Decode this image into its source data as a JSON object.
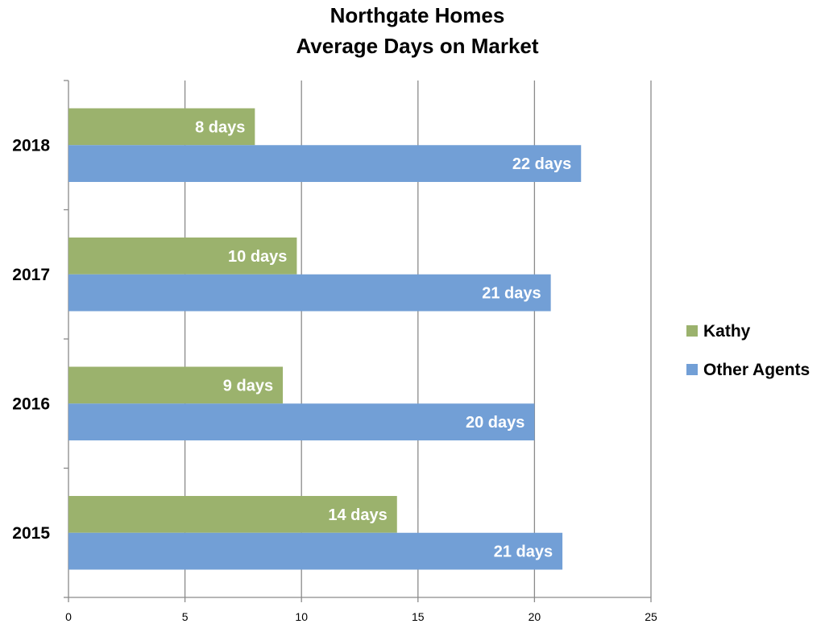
{
  "chart_data": {
    "type": "bar",
    "orientation": "horizontal",
    "title": "Northgate Homes",
    "subtitle": "Average Days on Market",
    "xlabel": "",
    "ylabel": "",
    "categories": [
      "2015",
      "2016",
      "2017",
      "2018"
    ],
    "xlim": [
      0,
      25
    ],
    "x_ticks": [
      0,
      5,
      10,
      15,
      20,
      25
    ],
    "grid": true,
    "legend_position": "right",
    "series": [
      {
        "name": "Kathy",
        "color": "#9bb26d",
        "values": [
          14.1,
          9.2,
          9.8,
          8.0
        ],
        "labels": [
          "14 days",
          "9 days",
          "10 days",
          "8 days"
        ]
      },
      {
        "name": "Other Agents",
        "color": "#729fd6",
        "values": [
          21.2,
          20.0,
          20.7,
          22.0
        ],
        "labels": [
          "21 days",
          "20 days",
          "21 days",
          "22 days"
        ]
      }
    ]
  }
}
